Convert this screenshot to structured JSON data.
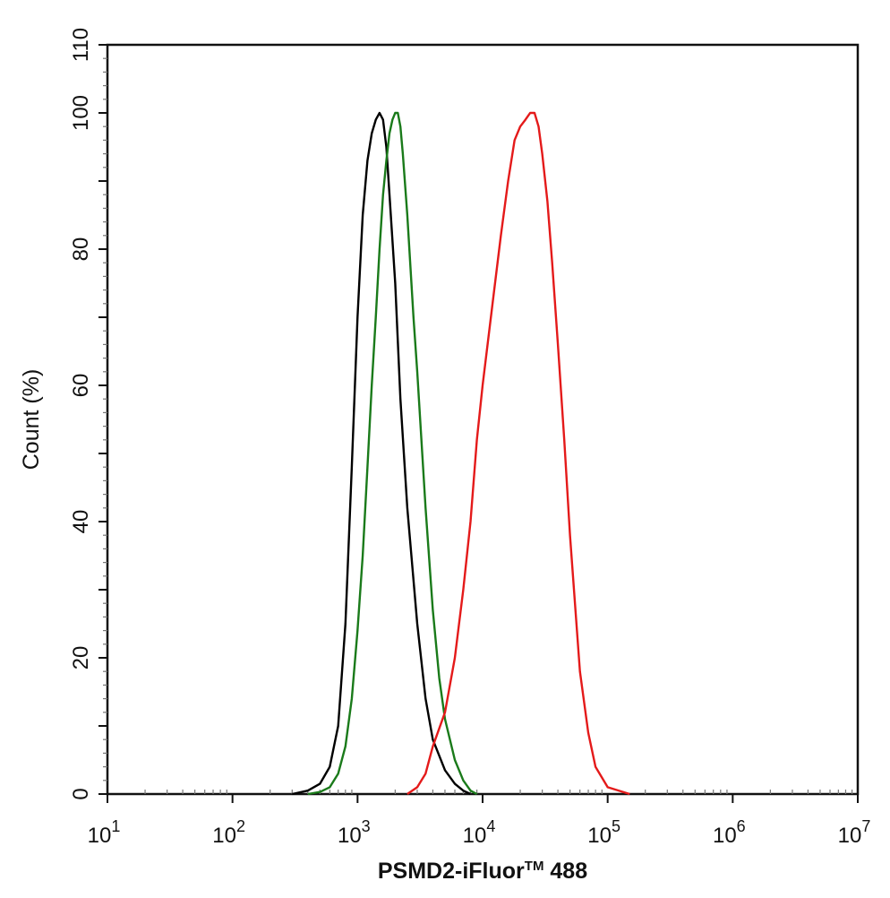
{
  "chart_data": {
    "type": "line",
    "xlabel": "PSMD2-iFluor™ 488",
    "xlabel_main": "PSMD2-iFluor",
    "xlabel_tm": "TM",
    "xlabel_suffix": " 488",
    "ylabel": "Count  (%)",
    "x_scale": "log",
    "xlim": [
      10,
      10000000
    ],
    "ylim": [
      0,
      110
    ],
    "x_ticks": [
      {
        "base": "10",
        "exp": "1",
        "value": 10
      },
      {
        "base": "10",
        "exp": "2",
        "value": 100
      },
      {
        "base": "10",
        "exp": "3",
        "value": 1000
      },
      {
        "base": "10",
        "exp": "4",
        "value": 10000
      },
      {
        "base": "10",
        "exp": "5",
        "value": 100000
      },
      {
        "base": "10",
        "exp": "6",
        "value": 1000000
      },
      {
        "base": "10",
        "exp": "7",
        "value": 10000000
      }
    ],
    "y_ticks": [
      0,
      20,
      40,
      60,
      80,
      100,
      110
    ],
    "grid": false,
    "legend": "none",
    "series": [
      {
        "color": "#000000",
        "points": [
          [
            300,
            0
          ],
          [
            400,
            0.5
          ],
          [
            500,
            1.5
          ],
          [
            600,
            4
          ],
          [
            700,
            10
          ],
          [
            800,
            25
          ],
          [
            900,
            48
          ],
          [
            1000,
            70
          ],
          [
            1100,
            85
          ],
          [
            1200,
            93
          ],
          [
            1300,
            97
          ],
          [
            1400,
            99
          ],
          [
            1500,
            100
          ],
          [
            1600,
            99
          ],
          [
            1700,
            95
          ],
          [
            1800,
            88
          ],
          [
            2000,
            75
          ],
          [
            2200,
            58
          ],
          [
            2500,
            42
          ],
          [
            3000,
            25
          ],
          [
            3500,
            14
          ],
          [
            4000,
            8
          ],
          [
            5000,
            3.5
          ],
          [
            6000,
            1.5
          ],
          [
            7000,
            0.5
          ],
          [
            8000,
            0
          ]
        ]
      },
      {
        "color": "#1a7a1a",
        "points": [
          [
            400,
            0
          ],
          [
            500,
            0.3
          ],
          [
            600,
            1
          ],
          [
            700,
            3
          ],
          [
            800,
            7
          ],
          [
            900,
            14
          ],
          [
            1000,
            24
          ],
          [
            1100,
            35
          ],
          [
            1200,
            48
          ],
          [
            1300,
            60
          ],
          [
            1400,
            70
          ],
          [
            1500,
            80
          ],
          [
            1600,
            88
          ],
          [
            1700,
            93
          ],
          [
            1800,
            97
          ],
          [
            1900,
            99
          ],
          [
            2000,
            100
          ],
          [
            2100,
            100
          ],
          [
            2200,
            98
          ],
          [
            2300,
            94
          ],
          [
            2500,
            85
          ],
          [
            2800,
            70
          ],
          [
            3000,
            62
          ],
          [
            3500,
            42
          ],
          [
            4000,
            27
          ],
          [
            4500,
            17
          ],
          [
            5000,
            11
          ],
          [
            6000,
            5
          ],
          [
            7000,
            2
          ],
          [
            8000,
            0.5
          ],
          [
            9000,
            0
          ]
        ]
      },
      {
        "color": "#e41a1a",
        "points": [
          [
            2500,
            0
          ],
          [
            3000,
            1
          ],
          [
            3500,
            3
          ],
          [
            4000,
            7
          ],
          [
            5000,
            12
          ],
          [
            6000,
            20
          ],
          [
            7000,
            30
          ],
          [
            8000,
            40
          ],
          [
            9000,
            52
          ],
          [
            10000,
            60
          ],
          [
            12000,
            72
          ],
          [
            14000,
            82
          ],
          [
            16000,
            90
          ],
          [
            18000,
            96
          ],
          [
            20000,
            98
          ],
          [
            22000,
            99
          ],
          [
            24000,
            100
          ],
          [
            26000,
            100
          ],
          [
            28000,
            98
          ],
          [
            30000,
            94
          ],
          [
            33000,
            87
          ],
          [
            36000,
            78
          ],
          [
            40000,
            66
          ],
          [
            45000,
            52
          ],
          [
            50000,
            38
          ],
          [
            60000,
            18
          ],
          [
            70000,
            9
          ],
          [
            80000,
            4
          ],
          [
            100000,
            1
          ],
          [
            150000,
            0
          ]
        ]
      }
    ]
  }
}
